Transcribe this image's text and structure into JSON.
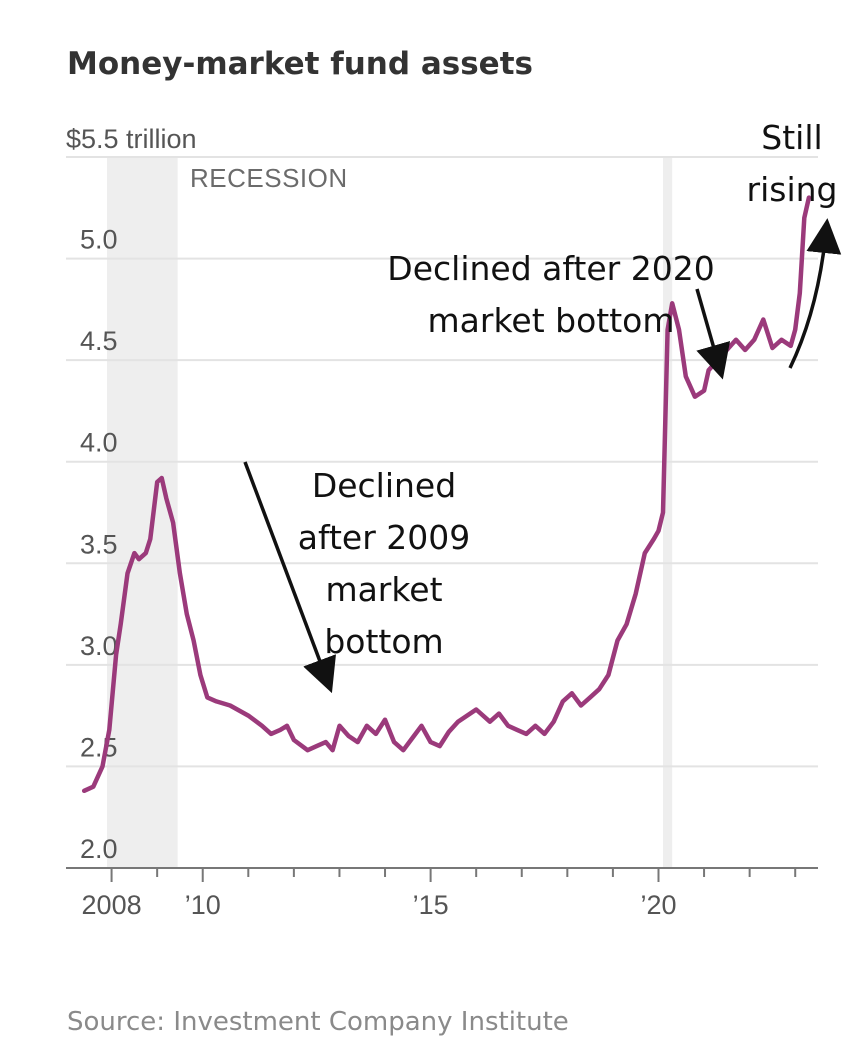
{
  "chart_data": {
    "type": "line",
    "title": "Money-market fund assets",
    "ylabel": "$5.5 trillion",
    "unit_label": "$5.5 trillion",
    "ylim": [
      2.0,
      5.5
    ],
    "xlim": [
      2007.0,
      2023.5
    ],
    "y_ticks": [
      2.0,
      2.5,
      3.0,
      3.5,
      4.0,
      4.5,
      5.0
    ],
    "y_tick_labels": [
      "2.0",
      "2.5",
      "3.0",
      "3.5",
      "4.0",
      "4.5",
      "5.0"
    ],
    "x_ticks": [
      2008,
      2010,
      2015,
      2020
    ],
    "x_tick_labels": [
      "2008",
      "’10",
      "’15",
      "’20"
    ],
    "recession_label": "RECESSION",
    "shaded_periods": [
      {
        "label": "RECESSION",
        "start": 2007.9,
        "end": 2009.45
      },
      {
        "label": "",
        "start": 2020.1,
        "end": 2020.3
      }
    ],
    "series": [
      {
        "name": "Money-market fund assets",
        "color": "#9b3a7b",
        "x": [
          2007.4,
          2007.6,
          2007.8,
          2007.95,
          2008.1,
          2008.2,
          2008.35,
          2008.5,
          2008.6,
          2008.75,
          2008.85,
          2009.0,
          2009.1,
          2009.2,
          2009.35,
          2009.5,
          2009.65,
          2009.8,
          2009.95,
          2010.1,
          2010.3,
          2010.6,
          2011.0,
          2011.3,
          2011.5,
          2011.7,
          2011.85,
          2012.0,
          2012.3,
          2012.5,
          2012.7,
          2012.85,
          2013.0,
          2013.2,
          2013.4,
          2013.6,
          2013.8,
          2014.0,
          2014.2,
          2014.4,
          2014.6,
          2014.8,
          2015.0,
          2015.2,
          2015.4,
          2015.6,
          2015.8,
          2016.0,
          2016.3,
          2016.5,
          2016.7,
          2016.9,
          2017.1,
          2017.3,
          2017.5,
          2017.7,
          2017.9,
          2018.1,
          2018.3,
          2018.5,
          2018.7,
          2018.9,
          2019.1,
          2019.3,
          2019.5,
          2019.7,
          2019.9,
          2020.0,
          2020.1,
          2020.15,
          2020.2,
          2020.3,
          2020.45,
          2020.6,
          2020.8,
          2021.0,
          2021.1,
          2021.3,
          2021.5,
          2021.7,
          2021.9,
          2022.1,
          2022.3,
          2022.5,
          2022.7,
          2022.9,
          2023.0,
          2023.1,
          2023.2,
          2023.3
        ],
        "values": [
          2.38,
          2.4,
          2.5,
          2.68,
          3.05,
          3.2,
          3.45,
          3.55,
          3.52,
          3.55,
          3.62,
          3.9,
          3.92,
          3.82,
          3.7,
          3.45,
          3.25,
          3.12,
          2.95,
          2.84,
          2.82,
          2.8,
          2.75,
          2.7,
          2.66,
          2.68,
          2.7,
          2.63,
          2.58,
          2.6,
          2.62,
          2.58,
          2.7,
          2.65,
          2.62,
          2.7,
          2.66,
          2.73,
          2.62,
          2.58,
          2.64,
          2.7,
          2.62,
          2.6,
          2.67,
          2.72,
          2.75,
          2.78,
          2.72,
          2.76,
          2.7,
          2.68,
          2.66,
          2.7,
          2.66,
          2.72,
          2.82,
          2.86,
          2.8,
          2.84,
          2.88,
          2.95,
          3.12,
          3.2,
          3.35,
          3.55,
          3.62,
          3.66,
          3.75,
          4.2,
          4.65,
          4.78,
          4.65,
          4.42,
          4.32,
          4.35,
          4.45,
          4.5,
          4.55,
          4.6,
          4.55,
          4.6,
          4.7,
          4.56,
          4.6,
          4.57,
          4.65,
          4.83,
          5.2,
          5.3
        ]
      }
    ],
    "annotations": [
      {
        "lines": [
          "Declined",
          "after 2009",
          "market",
          "bottom"
        ]
      },
      {
        "lines": [
          "Declined after 2020",
          "market bottom"
        ]
      },
      {
        "lines": [
          "Still",
          "rising"
        ]
      }
    ],
    "source": "Source: Investment Company Institute",
    "grid": true
  }
}
